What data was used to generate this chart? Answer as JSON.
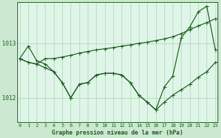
{
  "title": "Graphe pression niveau de la mer (hPa)",
  "background_color": "#cce8d0",
  "plot_bg_color": "#dff5e8",
  "grid_color": "#aacfb5",
  "line_color": "#1a5c1a",
  "x_ticks": [
    0,
    1,
    2,
    3,
    4,
    5,
    6,
    7,
    8,
    9,
    10,
    11,
    12,
    13,
    14,
    15,
    16,
    17,
    18,
    19,
    20,
    21,
    22,
    23
  ],
  "y_ticks": [
    1012,
    1013
  ],
  "ylim": [
    1011.55,
    1013.75
  ],
  "xlim": [
    -0.3,
    23.3
  ],
  "series_line1": [
    1012.72,
    1012.95,
    1012.68,
    1012.62,
    1012.48,
    1012.28,
    1012.0,
    1012.25,
    1012.28,
    1012.42,
    1012.45,
    1012.45,
    1012.42,
    1012.28,
    1012.05,
    1011.92,
    1011.78,
    1012.2,
    1012.4,
    1013.1,
    1013.3,
    1013.58,
    1013.68,
    1012.88
  ],
  "series_line2": [
    1012.72,
    1012.65,
    1012.62,
    1012.72,
    1012.72,
    1012.75,
    1012.78,
    1012.82,
    1012.85,
    1012.88,
    1012.9,
    1012.92,
    1012.95,
    1012.97,
    1013.0,
    1013.02,
    1013.05,
    1013.08,
    1013.12,
    1013.18,
    1013.25,
    1013.32,
    1013.38,
    1013.45
  ],
  "series_line3": [
    1012.72,
    1012.65,
    1012.62,
    1012.55,
    1012.48,
    1012.28,
    1012.0,
    1012.25,
    1012.28,
    1012.42,
    1012.45,
    1012.45,
    1012.42,
    1012.28,
    1012.05,
    1011.92,
    1011.78,
    1011.92,
    1012.05,
    1012.15,
    1012.25,
    1012.38,
    1012.48,
    1012.65
  ]
}
